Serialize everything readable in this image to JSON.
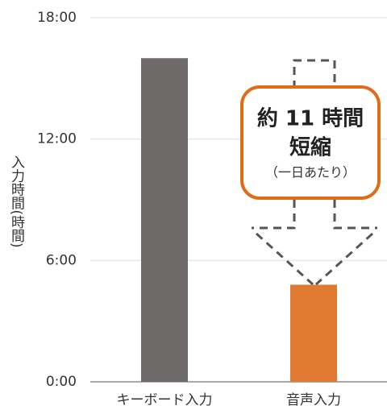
{
  "chart_data": {
    "type": "bar",
    "y_label": "入力時間(時間)",
    "categories": [
      "キーボード入力",
      "音声入力"
    ],
    "values": [
      16,
      4.8
    ],
    "colors": [
      "#6d6a69",
      "#e07a33"
    ],
    "ylim": [
      0,
      18
    ],
    "yticks": [
      {
        "value": 0,
        "label": "0:00"
      },
      {
        "value": 6,
        "label": "6:00"
      },
      {
        "value": 12,
        "label": "12:00"
      },
      {
        "value": 18,
        "label": "18:00"
      }
    ],
    "grid": true,
    "annotation": [
      "約 11 時間",
      "短縮",
      "（一日あたり）"
    ]
  }
}
